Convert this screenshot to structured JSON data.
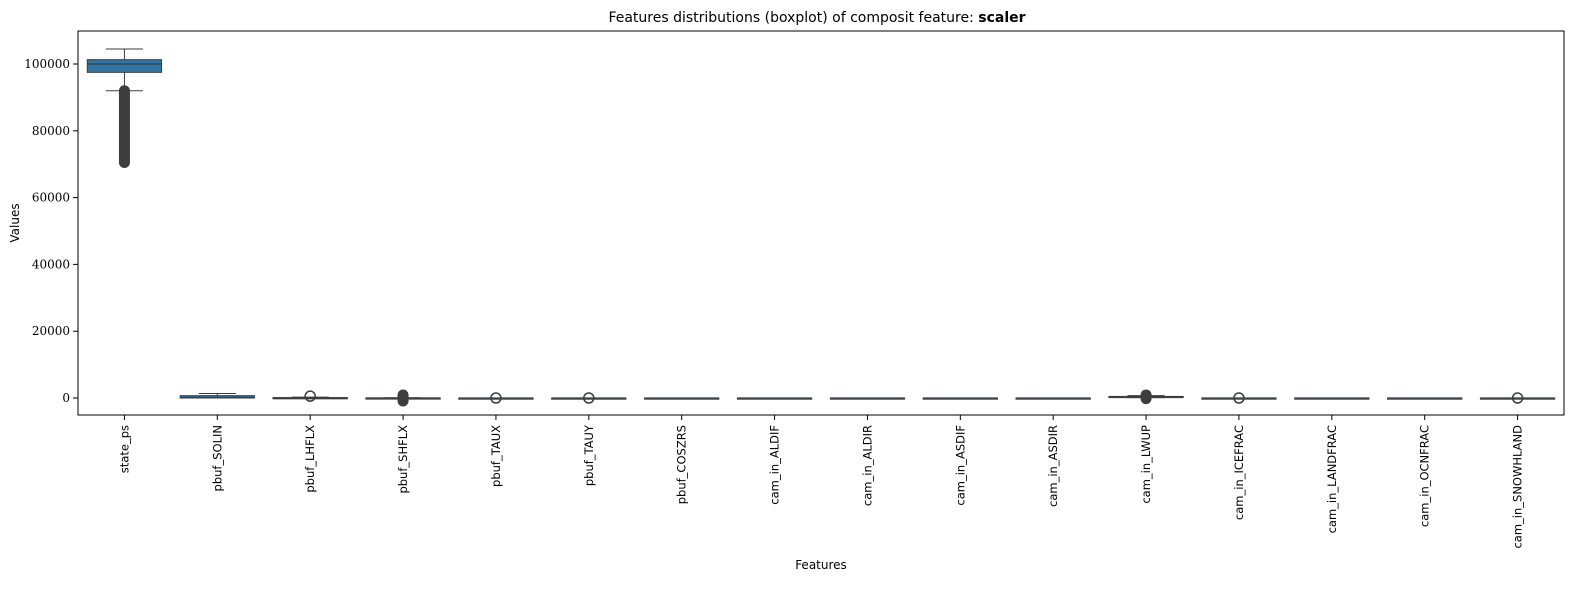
{
  "chart_data": {
    "type": "boxplot",
    "title_prefix": "Features distributions (boxplot) of composit feature: ",
    "title_bold": "scaler",
    "xlabel": "Features",
    "ylabel": "Values",
    "ylim": [
      -5000,
      110000
    ],
    "yticks": [
      "0",
      "20000",
      "40000",
      "60000",
      "80000",
      "100000"
    ],
    "ytick_values": [
      0,
      20000,
      40000,
      60000,
      80000,
      100000
    ],
    "grid": false,
    "box_color": "#3274a1",
    "line_color": "#3d3d3d",
    "categories": [
      "state_ps",
      "pbuf_SOLIN",
      "pbuf_LHFLX",
      "pbuf_SHFLX",
      "pbuf_TAUX",
      "pbuf_TAUY",
      "pbuf_COSZRS",
      "cam_in_ALDIF",
      "cam_in_ALDIR",
      "cam_in_ASDIF",
      "cam_in_ASDIR",
      "cam_in_LWUP",
      "cam_in_ICEFRAC",
      "cam_in_LANDFRAC",
      "cam_in_OCNFRAC",
      "cam_in_SNOWHLAND"
    ],
    "boxes": [
      {
        "whislo": 92000,
        "q1": 97500,
        "med": 100000,
        "q3": 101300,
        "whishi": 104500,
        "fliers": [
          70500,
          92000
        ]
      },
      {
        "whislo": 0,
        "q1": 0,
        "med": 150,
        "q3": 700,
        "whishi": 1360,
        "fliers": []
      },
      {
        "whislo": -150,
        "q1": 0,
        "med": 30,
        "q3": 110,
        "whishi": 280,
        "fliers": [
          300,
          800
        ]
      },
      {
        "whislo": -80,
        "q1": -10,
        "med": 5,
        "q3": 25,
        "whishi": 70,
        "fliers": [
          -900,
          900
        ]
      },
      {
        "whislo": -1,
        "q1": 0,
        "med": 0,
        "q3": 0,
        "whishi": 1,
        "fliers": [
          -200,
          200
        ]
      },
      {
        "whislo": -1,
        "q1": 0,
        "med": 0,
        "q3": 0,
        "whishi": 1,
        "fliers": [
          -200,
          200
        ]
      },
      {
        "whislo": 0,
        "q1": 0,
        "med": 0,
        "q3": 1,
        "whishi": 1,
        "fliers": []
      },
      {
        "whislo": 0,
        "q1": 0,
        "med": 0,
        "q3": 1,
        "whishi": 1,
        "fliers": []
      },
      {
        "whislo": 0,
        "q1": 0,
        "med": 0,
        "q3": 1,
        "whishi": 1,
        "fliers": []
      },
      {
        "whislo": 0,
        "q1": 0,
        "med": 0,
        "q3": 1,
        "whishi": 1,
        "fliers": []
      },
      {
        "whislo": 0,
        "q1": 0,
        "med": 0,
        "q3": 1,
        "whishi": 1,
        "fliers": []
      },
      {
        "whislo": 100,
        "q1": 300,
        "med": 400,
        "q3": 470,
        "whishi": 700,
        "fliers": [
          -200,
          900
        ]
      },
      {
        "whislo": 0,
        "q1": 0,
        "med": 0,
        "q3": 0,
        "whishi": 0,
        "fliers": [
          0,
          1
        ]
      },
      {
        "whislo": 0,
        "q1": 0,
        "med": 0,
        "q3": 1,
        "whishi": 1,
        "fliers": []
      },
      {
        "whislo": 0,
        "q1": 0,
        "med": 0,
        "q3": 1,
        "whishi": 1,
        "fliers": []
      },
      {
        "whislo": 0,
        "q1": 0,
        "med": 0,
        "q3": 0,
        "whishi": 0,
        "fliers": [
          0,
          1
        ]
      }
    ]
  }
}
